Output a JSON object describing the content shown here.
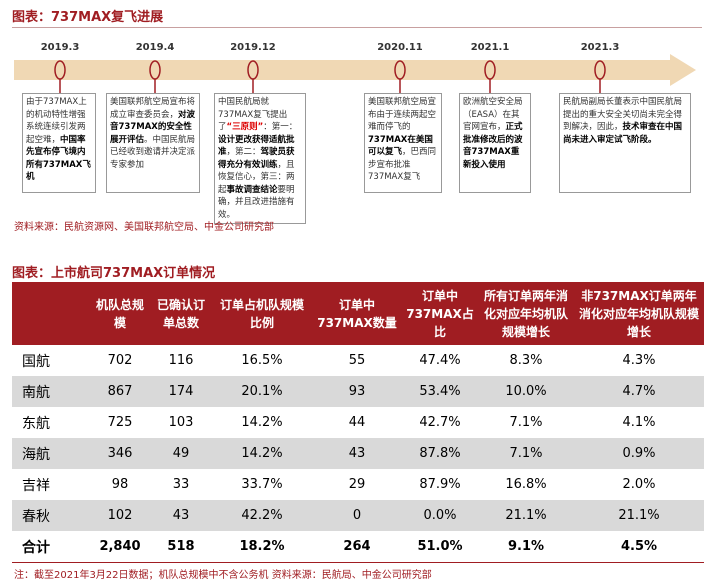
{
  "timeline": {
    "title": "图表：737MAX复飞进展",
    "events": [
      {
        "date": "2019.3",
        "runs": [
          {
            "text": "由于737MAX上的机动特性增强系统连续引发两起空难，"
          },
          {
            "text": "中国率先宣布停飞境内所有737MAX飞机",
            "bold": true
          }
        ]
      },
      {
        "date": "2019.4",
        "runs": [
          {
            "text": "美国联邦航空局宣布将成立审查委员会，"
          },
          {
            "text": "对波音737MAX的安全性展开评估",
            "bold": true
          },
          {
            "text": "。中国民航局已经收到邀请并决定派专家参加"
          }
        ]
      },
      {
        "date": "2019.12",
        "runs": [
          {
            "text": "中国民航局就737MAX复飞提出了"
          },
          {
            "text": "“三原则”",
            "red": true
          },
          {
            "text": "：第一："
          },
          {
            "text": "设计更改获得适航批准",
            "bold": true
          },
          {
            "text": "，第二："
          },
          {
            "text": "驾驶员获得充分有效训练",
            "bold": true
          },
          {
            "text": "，且恢复信心，第三：两起"
          },
          {
            "text": "事故调查结论",
            "bold": true
          },
          {
            "text": "要明确，并且改进措施有效。"
          }
        ]
      },
      {
        "date": "2020.11",
        "runs": [
          {
            "text": "美国联邦航空局宣布由于连续两起空难而停飞的"
          },
          {
            "text": "737MAX在美国可以复飞",
            "bold": true
          },
          {
            "text": "，巴西同步宣布批准737MAX复飞"
          }
        ]
      },
      {
        "date": "2021.1",
        "runs": [
          {
            "text": "欧洲航空安全局（EASA）在其官网宣布，"
          },
          {
            "text": "正式批准修改后的波音737MAX重新投入使用",
            "bold": true
          }
        ]
      },
      {
        "date": "2021.3",
        "runs": [
          {
            "text": "民航局副局长董表示中国民航局提出的重大安全关切尚未完全得到解决，因此，"
          },
          {
            "text": "技术审查在中国尚未进入审定试飞阶段。",
            "bold": true
          }
        ]
      }
    ],
    "source": "资料来源：民航资源网、美国联邦航空局、中金公司研究部"
  },
  "table": {
    "title": "图表：上市航司737MAX订单情况",
    "header": [
      "机队总规模",
      "已确认订单总数",
      "订单占机队规模比例",
      "订单中737MAX数量",
      "订单中737MAX占比",
      "所有订单两年消化对应年均机队规模增长",
      "非737MAX订单两年消化对应年均机队规模增长"
    ],
    "rows": [
      [
        "国航",
        "702",
        "116",
        "16.5%",
        "55",
        "47.4%",
        "8.3%",
        "4.3%"
      ],
      [
        "南航",
        "867",
        "174",
        "20.1%",
        "93",
        "53.4%",
        "10.0%",
        "4.7%"
      ],
      [
        "东航",
        "725",
        "103",
        "14.2%",
        "44",
        "42.7%",
        "7.1%",
        "4.1%"
      ],
      [
        "海航",
        "346",
        "49",
        "14.2%",
        "43",
        "87.8%",
        "7.1%",
        "0.9%"
      ],
      [
        "吉祥",
        "98",
        "33",
        "33.7%",
        "29",
        "87.9%",
        "16.8%",
        "2.0%"
      ],
      [
        "春秋",
        "102",
        "43",
        "42.2%",
        "0",
        "0.0%",
        "21.1%",
        "21.1%"
      ],
      [
        "合计",
        "2,840",
        "518",
        "18.2%",
        "264",
        "51.0%",
        "9.1%",
        "4.5%"
      ]
    ],
    "note": "注：截至2021年3月22日数据；机队总规模中不含公务机 资料来源：民航局、中金公司研究部"
  }
}
